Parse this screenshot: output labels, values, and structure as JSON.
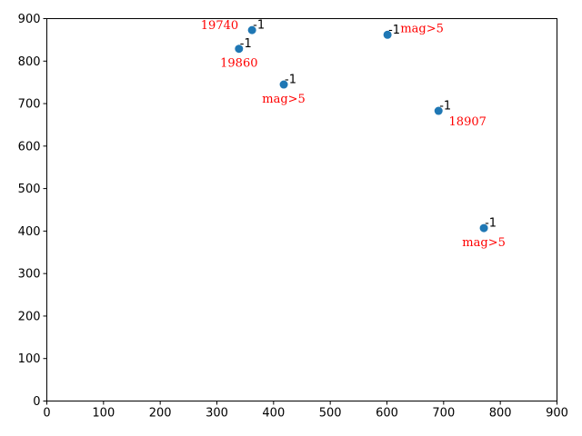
{
  "chart_data": {
    "type": "scatter",
    "title": "",
    "xlabel": "",
    "ylabel": "",
    "xlim": [
      0,
      900
    ],
    "ylim": [
      0,
      900
    ],
    "xticks": [
      0,
      100,
      200,
      300,
      400,
      500,
      600,
      700,
      800,
      900
    ],
    "yticks": [
      0,
      100,
      200,
      300,
      400,
      500,
      600,
      700,
      800,
      900
    ],
    "grid": false,
    "marker_color": "#1f77b4",
    "annotation_color": "#ff0000",
    "points": [
      {
        "x": 362,
        "y": 873,
        "label": "-1",
        "annotation": "19740",
        "annot_pos": "upper-left"
      },
      {
        "x": 339,
        "y": 829,
        "label": "-1",
        "annotation": "19860",
        "annot_pos": "below"
      },
      {
        "x": 601,
        "y": 862,
        "label": "-1",
        "annotation": "mag>5",
        "annot_pos": "right"
      },
      {
        "x": 418,
        "y": 745,
        "label": "-1",
        "annotation": "mag>5",
        "annot_pos": "below"
      },
      {
        "x": 691,
        "y": 683,
        "label": "-1",
        "annotation": "18907",
        "annot_pos": "below-right"
      },
      {
        "x": 771,
        "y": 407,
        "label": "-1",
        "annotation": "mag>5",
        "annot_pos": "below"
      }
    ]
  }
}
